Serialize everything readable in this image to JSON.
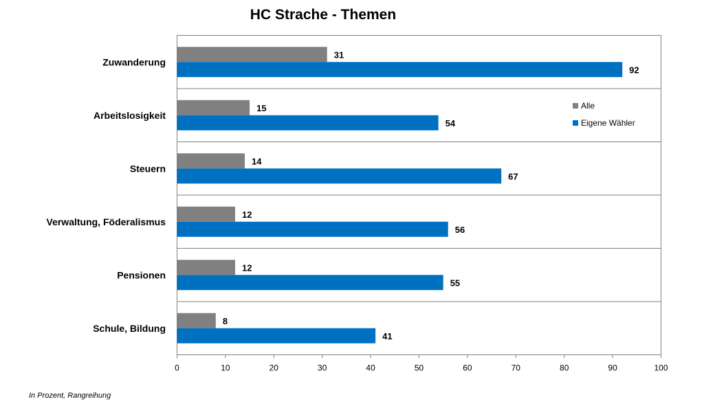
{
  "chart_data": {
    "type": "bar",
    "orientation": "horizontal",
    "title": "HC Strache - Themen",
    "categories": [
      "Zuwanderung",
      "Arbeitslosigkeit",
      "Steuern",
      "Verwaltung, Föderalismus",
      "Pensionen",
      "Schule, Bildung"
    ],
    "series": [
      {
        "name": "Alle",
        "color": "#808080",
        "values": [
          31,
          15,
          14,
          12,
          12,
          8
        ]
      },
      {
        "name": "Eigene Wähler",
        "color": "#0070C0",
        "values": [
          92,
          54,
          67,
          56,
          55,
          41
        ]
      }
    ],
    "xlim": [
      0,
      100
    ],
    "xticks": [
      0,
      10,
      20,
      30,
      40,
      50,
      60,
      70,
      80,
      90,
      100
    ],
    "xlabel": "",
    "ylabel": "",
    "grid": "horizontal separators between categories",
    "legend_position": "top-right"
  },
  "footnote": "In Prozent, Rangreihung"
}
